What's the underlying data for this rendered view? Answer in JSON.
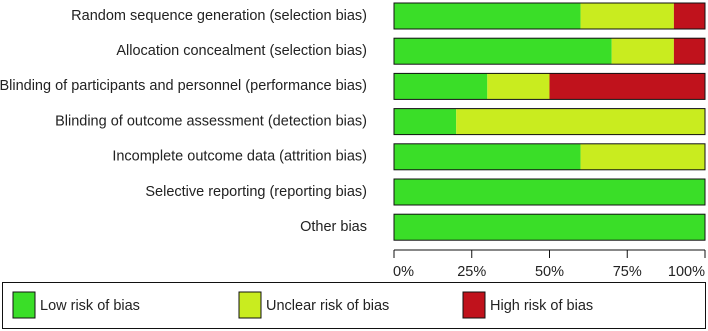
{
  "chart_data": {
    "type": "stacked-bar-horizontal",
    "categories": [
      "Random sequence generation (selection bias)",
      "Allocation concealment (selection bias)",
      "Blinding of participants and personnel (performance bias)",
      "Blinding of outcome assessment (detection bias)",
      "Incomplete outcome data (attrition bias)",
      "Selective reporting (reporting bias)",
      "Other bias"
    ],
    "series": [
      {
        "name": "Low risk of bias",
        "color": "#3ade28",
        "values": [
          60,
          70,
          30,
          20,
          60,
          100,
          100
        ]
      },
      {
        "name": "Unclear risk of bias",
        "color": "#c9ec1f",
        "values": [
          30,
          20,
          20,
          80,
          40,
          0,
          0
        ]
      },
      {
        "name": "High risk of bias",
        "color": "#c0121c",
        "values": [
          10,
          10,
          50,
          0,
          0,
          0,
          0
        ]
      }
    ],
    "xlim": [
      0,
      100
    ],
    "xticks": [
      {
        "value": 0,
        "label": "0%"
      },
      {
        "value": 25,
        "label": "25%"
      },
      {
        "value": 50,
        "label": "50%"
      },
      {
        "value": 75,
        "label": "75%"
      },
      {
        "value": 100,
        "label": "100%"
      }
    ],
    "legend": "bottom"
  }
}
